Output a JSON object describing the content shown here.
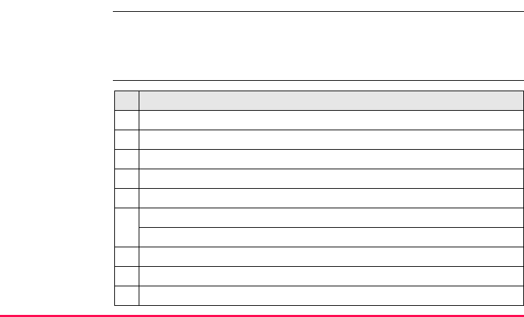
{
  "colors": {
    "accent": "#ff0a50",
    "header_fill": "#e6e6e6"
  },
  "table": {
    "headers": [
      "",
      ""
    ],
    "rows": [
      {
        "num": "",
        "desc": [
          ""
        ]
      },
      {
        "num": "",
        "desc": [
          ""
        ]
      },
      {
        "num": "",
        "desc": [
          ""
        ]
      },
      {
        "num": "",
        "desc": [
          ""
        ]
      },
      {
        "num": "",
        "desc": [
          ""
        ]
      },
      {
        "num": "",
        "desc": [
          "",
          ""
        ]
      },
      {
        "num": "",
        "desc": [
          ""
        ]
      },
      {
        "num": "",
        "desc": [
          ""
        ]
      },
      {
        "num": "",
        "desc": [
          ""
        ]
      }
    ]
  }
}
